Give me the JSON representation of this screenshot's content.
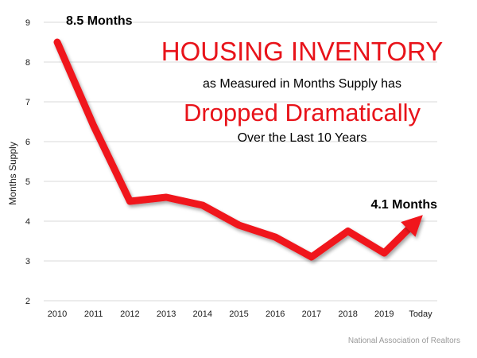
{
  "chart_data": {
    "type": "line",
    "title": [
      "HOUSING INVENTORY",
      "as Measured in Months Supply has",
      "Dropped Dramatically",
      "Over the Last 10 Years"
    ],
    "categories": [
      "2010",
      "2011",
      "2012",
      "2013",
      "2014",
      "2015",
      "2016",
      "2017",
      "2018",
      "2019",
      "Today"
    ],
    "series": [
      {
        "name": "Months Supply",
        "values": [
          8.5,
          6.4,
          4.5,
          4.6,
          4.4,
          3.9,
          3.6,
          3.1,
          3.75,
          3.2,
          4.1
        ]
      }
    ],
    "xlabel": "",
    "ylabel": "Months Supply",
    "ylim": [
      2,
      9
    ],
    "yticks": [
      2,
      3,
      4,
      5,
      6,
      7,
      8,
      9
    ],
    "grid": true,
    "annotations": [
      {
        "text": "8.5 Months",
        "category": "2010",
        "value": 8.5
      },
      {
        "text": "4.1 Months",
        "category": "Today",
        "value": 4.1
      }
    ],
    "source": "National Association of Realtors",
    "colors": {
      "line": "#f0141c",
      "title": "#e8131a",
      "grid": "#d9d9d9"
    }
  }
}
